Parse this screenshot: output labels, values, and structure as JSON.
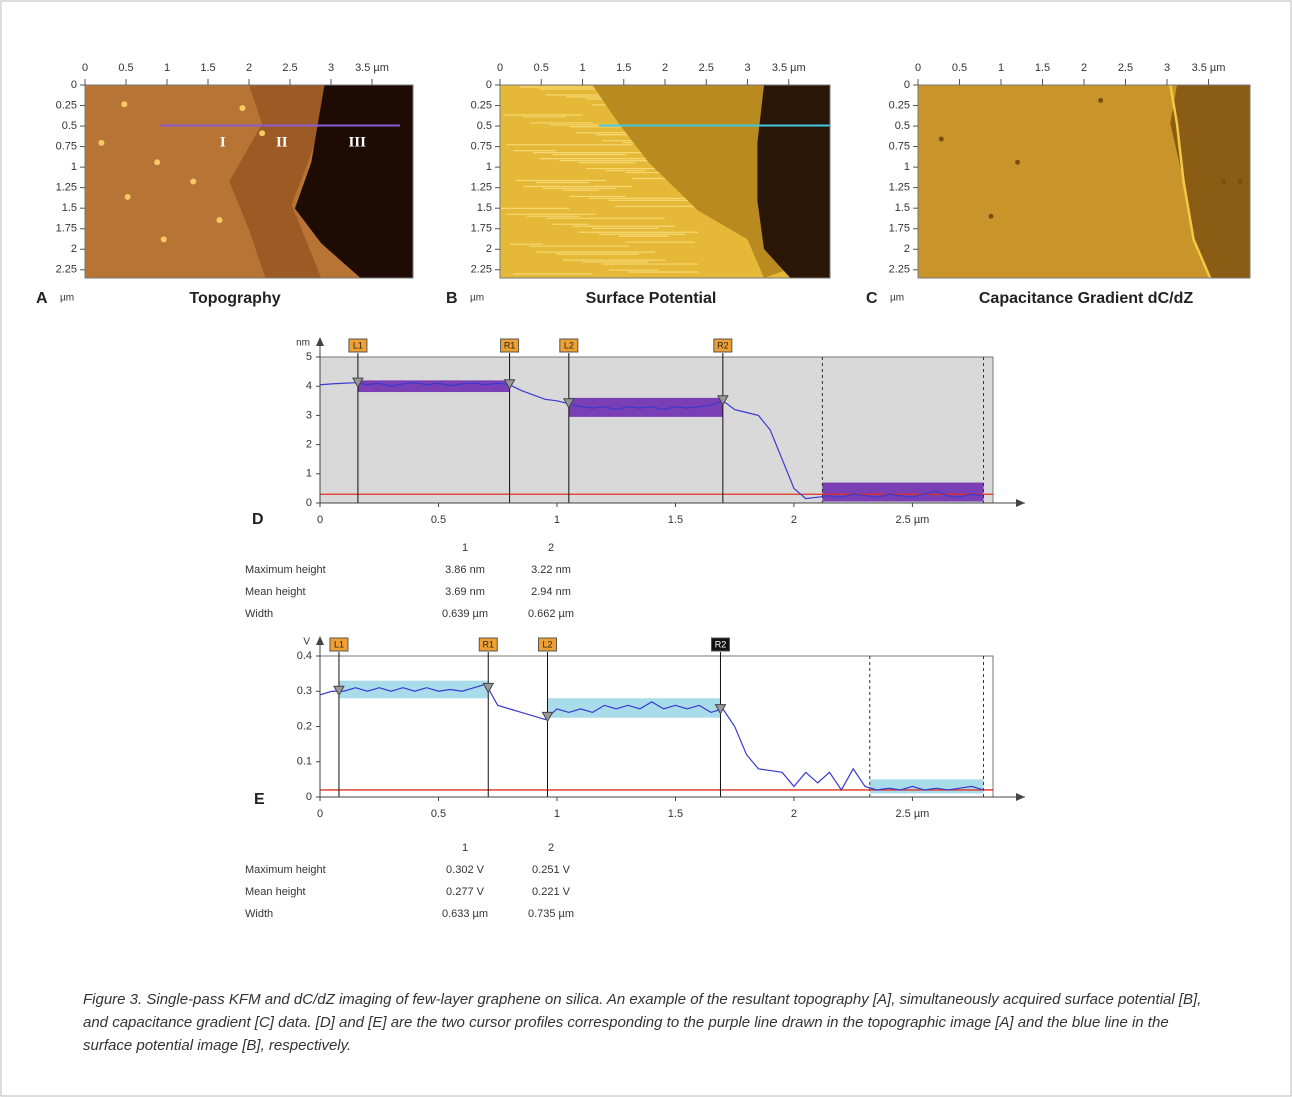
{
  "images": [
    {
      "letter": "A",
      "unit": "µm",
      "title": "Topography",
      "annotations": [
        "I",
        "II",
        "III"
      ],
      "xlim": [
        0,
        4
      ],
      "ylim": [
        0,
        2.35
      ],
      "xticks": [
        0,
        0.5,
        1,
        1.5,
        2,
        2.5,
        3,
        {
          "value": 3.5,
          "label": "3.5 µm"
        }
      ],
      "yticks": [
        0,
        0.25,
        0.5,
        0.75,
        1,
        1.25,
        1.5,
        1.75,
        2,
        2.25
      ]
    },
    {
      "letter": "B",
      "unit": "µm",
      "title": "Surface Potential",
      "xlim": [
        0,
        4
      ],
      "ylim": [
        0,
        2.35
      ],
      "xticks": [
        0,
        0.5,
        1,
        1.5,
        2,
        2.5,
        3,
        {
          "value": 3.5,
          "label": "3.5 µm"
        }
      ],
      "yticks": [
        0,
        0.25,
        0.5,
        0.75,
        1,
        1.25,
        1.5,
        1.75,
        2,
        2.25
      ]
    },
    {
      "letter": "C",
      "unit": "µm",
      "title": "Capacitance Gradient dC/dZ",
      "xlim": [
        0,
        4
      ],
      "ylim": [
        0,
        2.35
      ],
      "xticks": [
        0,
        0.5,
        1,
        1.5,
        2,
        2.5,
        3,
        {
          "value": 3.5,
          "label": "3.5 µm"
        }
      ],
      "yticks": [
        0,
        0.25,
        0.5,
        0.75,
        1,
        1.25,
        1.5,
        1.75,
        2,
        2.25
      ]
    }
  ],
  "chart_data": [
    {
      "type": "line",
      "letter": "D",
      "y_unit": "nm",
      "background": "#d9d9d9",
      "xlim": [
        0,
        2.84
      ],
      "ylim": [
        0,
        5
      ],
      "xticks": [
        0,
        0.5,
        1,
        1.5,
        2,
        {
          "value": 2.5,
          "label": "2.5 µm"
        }
      ],
      "yticks": [
        0,
        1,
        2,
        3,
        4,
        5
      ],
      "x": [
        0,
        0.05,
        0.1,
        0.15,
        0.2,
        0.25,
        0.3,
        0.35,
        0.4,
        0.45,
        0.5,
        0.55,
        0.6,
        0.65,
        0.7,
        0.75,
        0.8,
        0.85,
        0.9,
        0.95,
        1,
        1.05,
        1.1,
        1.15,
        1.2,
        1.25,
        1.3,
        1.35,
        1.4,
        1.45,
        1.5,
        1.55,
        1.6,
        1.65,
        1.7,
        1.75,
        1.8,
        1.85,
        1.9,
        1.95,
        2,
        2.05,
        2.1,
        2.15,
        2.2,
        2.25,
        2.3,
        2.35,
        2.4,
        2.45,
        2.5,
        2.55,
        2.6,
        2.65,
        2.7,
        2.75,
        2.8
      ],
      "series": [
        {
          "color": "#3a3ad0",
          "values": [
            4.05,
            4.08,
            4.1,
            4.12,
            4.05,
            4.1,
            4.0,
            4.08,
            4.12,
            4.05,
            4.1,
            4.02,
            4.08,
            4.1,
            4.05,
            4.1,
            4.05,
            3.85,
            3.7,
            3.55,
            3.5,
            3.4,
            3.3,
            3.25,
            3.3,
            3.2,
            3.3,
            3.25,
            3.3,
            3.2,
            3.3,
            3.25,
            3.3,
            3.35,
            3.5,
            3.2,
            3.1,
            3.0,
            2.5,
            1.5,
            0.5,
            0.15,
            0.2,
            0.25,
            0.2,
            0.3,
            0.25,
            0.2,
            0.3,
            0.25,
            0.2,
            0.3,
            0.4,
            0.25,
            0.2,
            0.3,
            0.25
          ]
        }
      ],
      "cursors": [
        {
          "label": "L1",
          "x": 0.16,
          "color": "#f0a030"
        },
        {
          "label": "R1",
          "x": 0.8,
          "color": "#f0a030"
        },
        {
          "label": "L2",
          "x": 1.05,
          "color": "#f0a030"
        },
        {
          "label": "R2",
          "x": 1.7,
          "color": "#f0a030"
        }
      ],
      "band_color": "#7b3fb5",
      "bands": [
        {
          "x": [
            0.16,
            0.8
          ],
          "y": [
            3.8,
            4.2
          ]
        },
        {
          "x": [
            1.05,
            1.7
          ],
          "y": [
            2.95,
            3.6
          ]
        },
        {
          "x": [
            2.12,
            2.8
          ],
          "y": [
            0.05,
            0.7
          ]
        }
      ],
      "markers": [
        2.12,
        2.8
      ],
      "baseline": 0.3,
      "baseline_color": "#e03020"
    },
    {
      "type": "line",
      "letter": "E",
      "y_unit": "V",
      "background": "#ffffff",
      "xlim": [
        0,
        2.84
      ],
      "ylim": [
        0,
        0.4
      ],
      "xticks": [
        0,
        0.5,
        1,
        1.5,
        2,
        {
          "value": 2.5,
          "label": "2.5 µm"
        }
      ],
      "yticks": [
        0,
        0.1,
        0.2,
        0.3,
        0.4
      ],
      "x": [
        0,
        0.05,
        0.1,
        0.15,
        0.2,
        0.25,
        0.3,
        0.35,
        0.4,
        0.45,
        0.5,
        0.55,
        0.6,
        0.65,
        0.7,
        0.75,
        0.8,
        0.85,
        0.9,
        0.95,
        1,
        1.05,
        1.1,
        1.15,
        1.2,
        1.25,
        1.3,
        1.35,
        1.4,
        1.45,
        1.5,
        1.55,
        1.6,
        1.65,
        1.7,
        1.75,
        1.8,
        1.85,
        1.9,
        1.95,
        2,
        2.05,
        2.1,
        2.15,
        2.2,
        2.25,
        2.3,
        2.35,
        2.4,
        2.45,
        2.5,
        2.55,
        2.6,
        2.65,
        2.7,
        2.75,
        2.8
      ],
      "series": [
        {
          "color": "#3a3ad0",
          "values": [
            0.29,
            0.3,
            0.3,
            0.31,
            0.3,
            0.31,
            0.3,
            0.31,
            0.3,
            0.31,
            0.3,
            0.305,
            0.3,
            0.31,
            0.32,
            0.26,
            0.25,
            0.24,
            0.23,
            0.22,
            0.25,
            0.24,
            0.25,
            0.24,
            0.26,
            0.25,
            0.26,
            0.25,
            0.27,
            0.25,
            0.26,
            0.25,
            0.26,
            0.24,
            0.25,
            0.2,
            0.12,
            0.08,
            0.075,
            0.07,
            0.03,
            0.07,
            0.04,
            0.07,
            0.02,
            0.08,
            0.03,
            0.02,
            0.025,
            0.02,
            0.03,
            0.02,
            0.025,
            0.02,
            0.025,
            0.03,
            0.02
          ]
        }
      ],
      "cursors": [
        {
          "label": "L1",
          "x": 0.08,
          "color": "#f0a030"
        },
        {
          "label": "R1",
          "x": 0.71,
          "color": "#f0a030"
        },
        {
          "label": "L2",
          "x": 0.96,
          "color": "#f0a030"
        },
        {
          "label": "R2",
          "x": 1.69,
          "color": "#111111"
        }
      ],
      "band_color": "#a8dcea",
      "bands": [
        {
          "x": [
            0.08,
            0.71
          ],
          "y": [
            0.28,
            0.33
          ]
        },
        {
          "x": [
            0.96,
            1.69
          ],
          "y": [
            0.225,
            0.28
          ]
        },
        {
          "x": [
            2.32,
            2.8
          ],
          "y": [
            0.01,
            0.05
          ]
        }
      ],
      "markers": [
        2.32,
        2.8
      ],
      "baseline": 0.02,
      "baseline_color": "#e03020"
    }
  ],
  "tables": [
    {
      "header": [
        "1",
        "2"
      ],
      "rows": [
        [
          "Maximum height",
          "3.86 nm",
          "3.22 nm"
        ],
        [
          "Mean height",
          "3.69 nm",
          "2.94 nm"
        ],
        [
          "Width",
          "0.639 µm",
          "0.662 µm"
        ]
      ]
    },
    {
      "header": [
        "1",
        "2"
      ],
      "rows": [
        [
          "Maximum height",
          "0.302 V",
          "0.251 V"
        ],
        [
          "Mean height",
          "0.277 V",
          "0.221 V"
        ],
        [
          "Width",
          "0.633 µm",
          "0.735 µm"
        ]
      ]
    }
  ],
  "caption": "Figure 3.  Single-pass KFM and dC/dZ imaging of few-layer graphene on silica. An example of the resultant topography [A], simultaneously acquired surface potential [B], and capacitance gradient [C] data. [D] and [E] are the two cursor profiles corresponding to the purple line drawn in the topographic image [A] and the blue line in the surface potential image [B], respectively."
}
